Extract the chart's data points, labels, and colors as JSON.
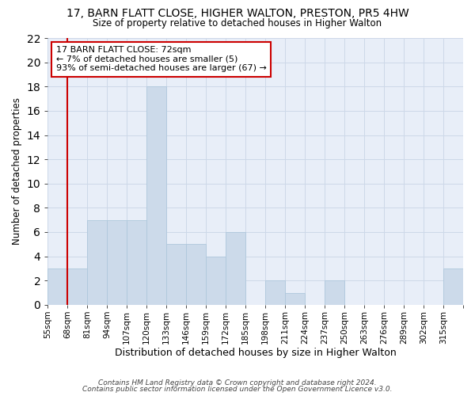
{
  "title": "17, BARN FLATT CLOSE, HIGHER WALTON, PRESTON, PR5 4HW",
  "subtitle": "Size of property relative to detached houses in Higher Walton",
  "xlabel": "Distribution of detached houses by size in Higher Walton",
  "ylabel": "Number of detached properties",
  "bar_color": "#ccdaea",
  "bar_edgecolor": "#afc8dc",
  "vline_color": "#cc0000",
  "vline_x_index": 1,
  "annotation_text": "17 BARN FLATT CLOSE: 72sqm\n← 7% of detached houses are smaller (5)\n93% of semi-detached houses are larger (67) →",
  "annotation_box_edgecolor": "#cc0000",
  "bin_labels": [
    "55sqm",
    "68sqm",
    "81sqm",
    "94sqm",
    "107sqm",
    "120sqm",
    "133sqm",
    "146sqm",
    "159sqm",
    "172sqm",
    "185sqm",
    "198sqm",
    "211sqm",
    "224sqm",
    "237sqm",
    "250sqm",
    "263sqm",
    "276sqm",
    "289sqm",
    "302sqm",
    "315sqm"
  ],
  "values": [
    3,
    3,
    7,
    7,
    7,
    18,
    5,
    5,
    4,
    6,
    0,
    2,
    1,
    0,
    2,
    0,
    0,
    0,
    0,
    0,
    3
  ],
  "ylim": [
    0,
    22
  ],
  "yticks": [
    0,
    2,
    4,
    6,
    8,
    10,
    12,
    14,
    16,
    18,
    20,
    22
  ],
  "footer_line1": "Contains HM Land Registry data © Crown copyright and database right 2024.",
  "footer_line2": "Contains public sector information licensed under the Open Government Licence v3.0.",
  "grid_color": "#cdd8e8",
  "background_color": "#e8eef8"
}
